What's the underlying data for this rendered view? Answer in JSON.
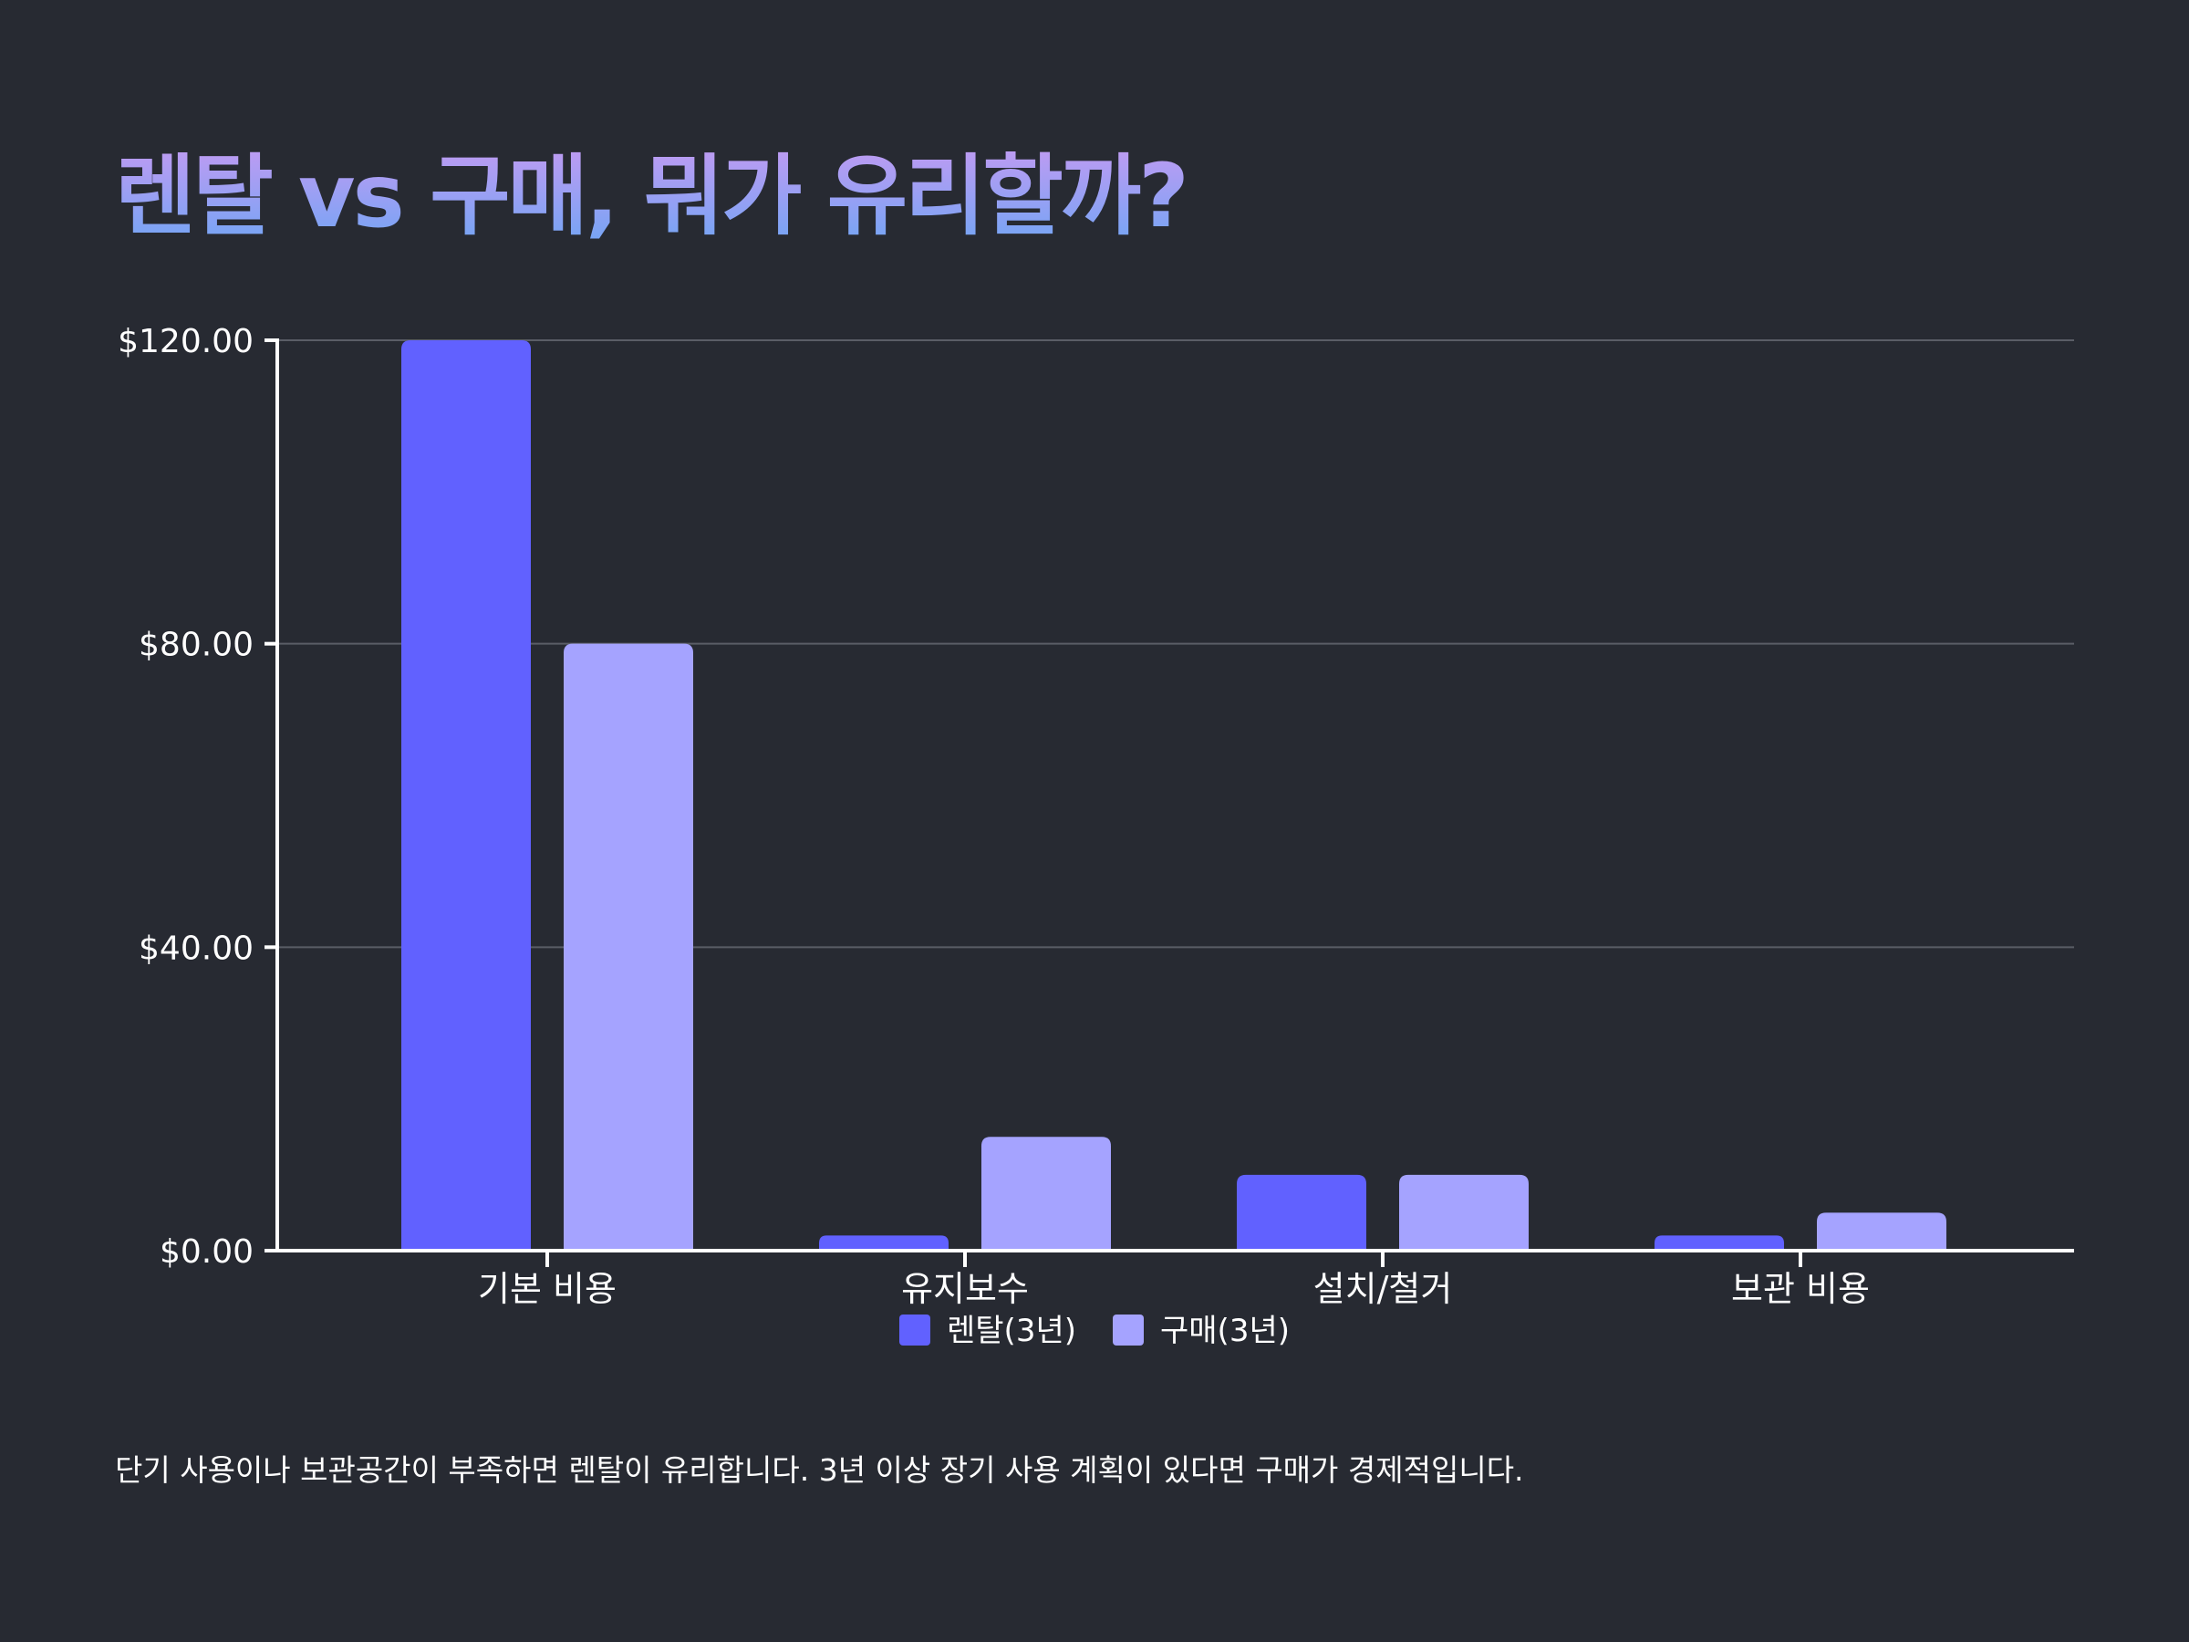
{
  "title": "렌탈 vs 구매, 뭐가 유리할까?",
  "footnote": "단기 사용이나 보관공간이 부족하면 렌탈이 유리합니다. 3년 이상 장기 사용 계획이 있다면 구매가 경제적입니다.",
  "colors": {
    "background": "#272a32",
    "rental": "#6161ff",
    "purchase": "#a5a3ff",
    "axis": "#ffffff",
    "grid": "#5a5d66"
  },
  "chart_data": {
    "type": "bar",
    "categories": [
      "기본 비용",
      "유지보수",
      "설치/철거",
      "보관 비용"
    ],
    "series": [
      {
        "name": "렌탈(3년)",
        "color": "#6161ff",
        "values": [
          120,
          2,
          10,
          2
        ]
      },
      {
        "name": "구매(3년)",
        "color": "#a5a3ff",
        "values": [
          80,
          15,
          10,
          5
        ]
      }
    ],
    "ylim": [
      0,
      120
    ],
    "yticks": [
      0,
      40,
      80,
      120
    ],
    "ytick_labels": [
      "$0.00",
      "$40.00",
      "$80.00",
      "$120.00"
    ],
    "xlabel": "",
    "ylabel": "",
    "grid": true,
    "legend": "bottom-center"
  }
}
